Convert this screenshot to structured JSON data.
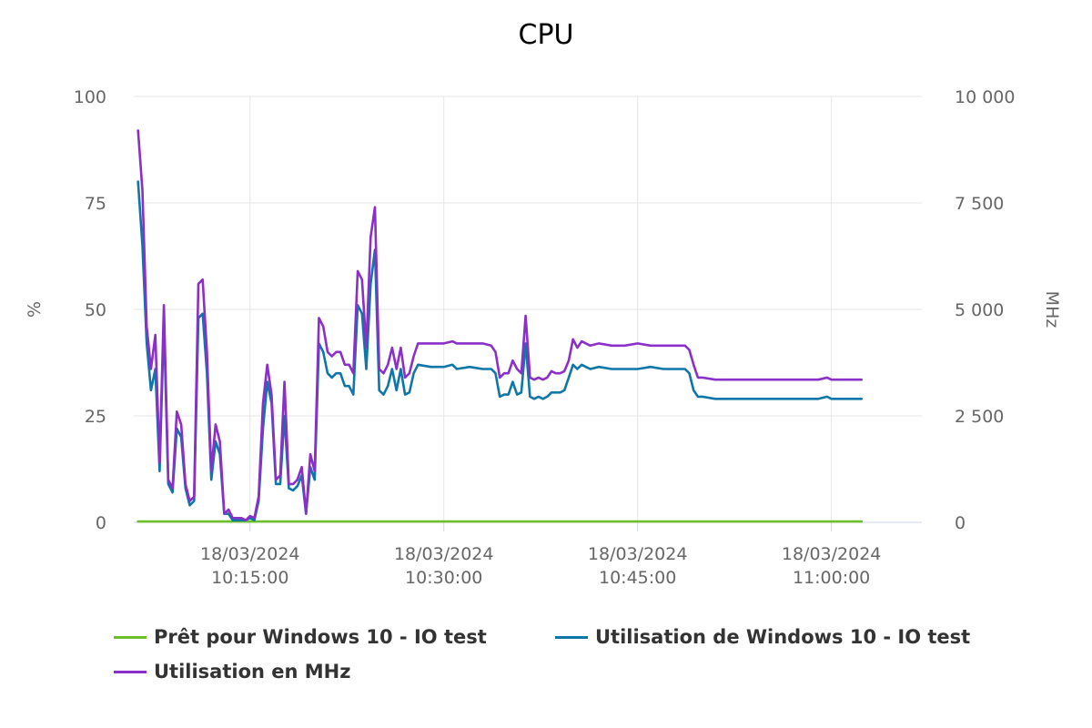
{
  "chart_data": {
    "type": "line",
    "title": "CPU",
    "y_left": {
      "label": "%",
      "range": [
        0,
        100
      ],
      "ticks": [
        "0",
        "25",
        "50",
        "75",
        "100"
      ]
    },
    "y_right": {
      "label": "MHz",
      "range": [
        0,
        10000
      ],
      "ticks": [
        "0",
        "2 500",
        "5 000",
        "7 500",
        "10 000"
      ]
    },
    "x_axis": {
      "range": [
        "18/03/2024 10:06",
        "18/03/2024 11:07"
      ],
      "ticks": [
        {
          "x": "18/03/2024 10:15:00",
          "date": "18/03/2024",
          "time": "10:15:00"
        },
        {
          "x": "18/03/2024 10:30:00",
          "date": "18/03/2024",
          "time": "10:30:00"
        },
        {
          "x": "18/03/2024 10:45:00",
          "date": "18/03/2024",
          "time": "10:45:00"
        },
        {
          "x": "18/03/2024 11:00:00",
          "date": "18/03/2024",
          "time": "11:00:00"
        }
      ]
    },
    "grid": true,
    "legend_position": "bottom-left",
    "series": [
      {
        "name": "Prêt pour Windows 10 - IO test",
        "color": "#6cbf2a",
        "axis": "left",
        "points": [
          [
            "10:06:20",
            0.2
          ],
          [
            "10:15:00",
            0.2
          ],
          [
            "10:30:00",
            0.2
          ],
          [
            "10:45:00",
            0.2
          ],
          [
            "11:00:00",
            0.2
          ],
          [
            "11:02:20",
            0.2
          ]
        ]
      },
      {
        "name": "Utilisation de Windows 10 - IO test",
        "color": "#0e76a8",
        "axis": "left",
        "points": [
          [
            "10:06:20",
            80
          ],
          [
            "10:06:40",
            65
          ],
          [
            "10:07:00",
            42
          ],
          [
            "10:07:20",
            31
          ],
          [
            "10:07:40",
            36
          ],
          [
            "10:08:00",
            12
          ],
          [
            "10:08:20",
            47
          ],
          [
            "10:08:40",
            9
          ],
          [
            "10:09:00",
            7
          ],
          [
            "10:09:20",
            22
          ],
          [
            "10:09:40",
            20
          ],
          [
            "10:10:00",
            8
          ],
          [
            "10:10:20",
            4
          ],
          [
            "10:10:40",
            5
          ],
          [
            "10:11:00",
            48
          ],
          [
            "10:11:20",
            49
          ],
          [
            "10:11:40",
            35
          ],
          [
            "10:12:00",
            10
          ],
          [
            "10:12:20",
            19
          ],
          [
            "10:12:40",
            16
          ],
          [
            "10:13:00",
            2
          ],
          [
            "10:13:20",
            2
          ],
          [
            "10:13:40",
            0.5
          ],
          [
            "10:14:00",
            0.5
          ],
          [
            "10:14:20",
            0.5
          ],
          [
            "10:14:40",
            0.5
          ],
          [
            "10:15:00",
            1
          ],
          [
            "10:15:20",
            0.5
          ],
          [
            "10:15:40",
            5
          ],
          [
            "10:16:00",
            22
          ],
          [
            "10:16:20",
            33
          ],
          [
            "10:16:40",
            28
          ],
          [
            "10:17:00",
            9
          ],
          [
            "10:17:20",
            9
          ],
          [
            "10:17:40",
            25
          ],
          [
            "10:18:00",
            8
          ],
          [
            "10:18:20",
            7.5
          ],
          [
            "10:18:40",
            8.5
          ],
          [
            "10:19:00",
            11
          ],
          [
            "10:19:20",
            2
          ],
          [
            "10:19:40",
            13
          ],
          [
            "10:20:00",
            10
          ],
          [
            "10:20:20",
            42
          ],
          [
            "10:20:40",
            40
          ],
          [
            "10:21:00",
            35
          ],
          [
            "10:21:20",
            34
          ],
          [
            "10:21:40",
            35
          ],
          [
            "10:22:00",
            35
          ],
          [
            "10:22:20",
            32
          ],
          [
            "10:22:40",
            32
          ],
          [
            "10:23:00",
            30
          ],
          [
            "10:23:20",
            51
          ],
          [
            "10:23:40",
            49
          ],
          [
            "10:24:00",
            36
          ],
          [
            "10:24:20",
            56
          ],
          [
            "10:24:40",
            64
          ],
          [
            "10:25:00",
            31
          ],
          [
            "10:25:20",
            30
          ],
          [
            "10:25:40",
            32
          ],
          [
            "10:26:00",
            36
          ],
          [
            "10:26:20",
            31
          ],
          [
            "10:26:40",
            36
          ],
          [
            "10:27:00",
            30
          ],
          [
            "10:27:20",
            30.5
          ],
          [
            "10:27:40",
            35
          ],
          [
            "10:28:00",
            37
          ],
          [
            "10:29:00",
            36.5
          ],
          [
            "10:30:00",
            36.5
          ],
          [
            "10:30:40",
            37
          ],
          [
            "10:31:00",
            36
          ],
          [
            "10:32:00",
            36.5
          ],
          [
            "10:33:00",
            36
          ],
          [
            "10:33:40",
            36
          ],
          [
            "10:34:00",
            35
          ],
          [
            "10:34:20",
            29.5
          ],
          [
            "10:34:40",
            30
          ],
          [
            "10:35:00",
            30
          ],
          [
            "10:35:20",
            33
          ],
          [
            "10:35:40",
            30
          ],
          [
            "10:36:00",
            30.5
          ],
          [
            "10:36:20",
            42
          ],
          [
            "10:36:40",
            29.5
          ],
          [
            "10:37:00",
            29
          ],
          [
            "10:37:20",
            29.5
          ],
          [
            "10:37:40",
            29
          ],
          [
            "10:38:00",
            29.5
          ],
          [
            "10:38:20",
            30.5
          ],
          [
            "10:38:40",
            30.5
          ],
          [
            "10:39:00",
            30.5
          ],
          [
            "10:39:20",
            31
          ],
          [
            "10:39:40",
            34
          ],
          [
            "10:40:00",
            37
          ],
          [
            "10:40:20",
            36
          ],
          [
            "10:40:40",
            37
          ],
          [
            "10:41:00",
            36.5
          ],
          [
            "10:41:20",
            36
          ],
          [
            "10:42:00",
            36.5
          ],
          [
            "10:43:00",
            36
          ],
          [
            "10:44:00",
            36
          ],
          [
            "10:45:00",
            36
          ],
          [
            "10:46:00",
            36.5
          ],
          [
            "10:47:00",
            36
          ],
          [
            "10:48:00",
            36
          ],
          [
            "10:48:40",
            36
          ],
          [
            "10:49:00",
            35
          ],
          [
            "10:49:20",
            31
          ],
          [
            "10:49:40",
            29.5
          ],
          [
            "10:50:00",
            29.5
          ],
          [
            "10:51:00",
            29
          ],
          [
            "10:52:00",
            29
          ],
          [
            "10:53:00",
            29
          ],
          [
            "10:54:00",
            29
          ],
          [
            "10:55:00",
            29
          ],
          [
            "10:56:00",
            29
          ],
          [
            "10:57:00",
            29
          ],
          [
            "10:58:00",
            29
          ],
          [
            "10:59:00",
            29
          ],
          [
            "10:59:40",
            29.5
          ],
          [
            "11:00:00",
            29
          ],
          [
            "11:01:00",
            29
          ],
          [
            "11:02:20",
            29
          ]
        ]
      },
      {
        "name": "Utilisation en MHz",
        "color": "#8b2fc9",
        "axis": "right",
        "points": [
          [
            "10:06:20",
            9200
          ],
          [
            "10:06:40",
            7800
          ],
          [
            "10:07:00",
            4600
          ],
          [
            "10:07:20",
            3600
          ],
          [
            "10:07:40",
            4400
          ],
          [
            "10:08:00",
            1400
          ],
          [
            "10:08:20",
            5100
          ],
          [
            "10:08:40",
            1000
          ],
          [
            "10:09:00",
            800
          ],
          [
            "10:09:20",
            2600
          ],
          [
            "10:09:40",
            2300
          ],
          [
            "10:10:00",
            900
          ],
          [
            "10:10:20",
            500
          ],
          [
            "10:10:40",
            600
          ],
          [
            "10:11:00",
            5600
          ],
          [
            "10:11:20",
            5700
          ],
          [
            "10:11:40",
            4000
          ],
          [
            "10:12:00",
            1200
          ],
          [
            "10:12:20",
            2300
          ],
          [
            "10:12:40",
            1900
          ],
          [
            "10:13:00",
            200
          ],
          [
            "10:13:20",
            300
          ],
          [
            "10:13:40",
            100
          ],
          [
            "10:14:00",
            100
          ],
          [
            "10:14:20",
            100
          ],
          [
            "10:14:40",
            50
          ],
          [
            "10:15:00",
            150
          ],
          [
            "10:15:20",
            100
          ],
          [
            "10:15:40",
            600
          ],
          [
            "10:16:00",
            2800
          ],
          [
            "10:16:20",
            3700
          ],
          [
            "10:16:40",
            3000
          ],
          [
            "10:17:00",
            1000
          ],
          [
            "10:17:20",
            1100
          ],
          [
            "10:17:40",
            3300
          ],
          [
            "10:18:00",
            900
          ],
          [
            "10:18:20",
            900
          ],
          [
            "10:18:40",
            1000
          ],
          [
            "10:19:00",
            1300
          ],
          [
            "10:19:20",
            200
          ],
          [
            "10:19:40",
            1600
          ],
          [
            "10:20:00",
            1200
          ],
          [
            "10:20:20",
            4800
          ],
          [
            "10:20:40",
            4600
          ],
          [
            "10:21:00",
            4000
          ],
          [
            "10:21:20",
            3900
          ],
          [
            "10:21:40",
            4000
          ],
          [
            "10:22:00",
            4000
          ],
          [
            "10:22:20",
            3700
          ],
          [
            "10:22:40",
            3700
          ],
          [
            "10:23:00",
            3500
          ],
          [
            "10:23:20",
            5900
          ],
          [
            "10:23:40",
            5700
          ],
          [
            "10:24:00",
            4100
          ],
          [
            "10:24:20",
            6700
          ],
          [
            "10:24:40",
            7400
          ],
          [
            "10:25:00",
            3600
          ],
          [
            "10:25:20",
            3500
          ],
          [
            "10:25:40",
            3700
          ],
          [
            "10:26:00",
            4100
          ],
          [
            "10:26:20",
            3600
          ],
          [
            "10:26:40",
            4100
          ],
          [
            "10:27:00",
            3400
          ],
          [
            "10:27:20",
            3500
          ],
          [
            "10:27:40",
            3900
          ],
          [
            "10:28:00",
            4200
          ],
          [
            "10:29:00",
            4200
          ],
          [
            "10:30:00",
            4200
          ],
          [
            "10:30:40",
            4250
          ],
          [
            "10:31:00",
            4200
          ],
          [
            "10:32:00",
            4200
          ],
          [
            "10:33:00",
            4200
          ],
          [
            "10:33:40",
            4150
          ],
          [
            "10:34:00",
            4000
          ],
          [
            "10:34:20",
            3400
          ],
          [
            "10:34:40",
            3500
          ],
          [
            "10:35:00",
            3500
          ],
          [
            "10:35:20",
            3800
          ],
          [
            "10:35:40",
            3600
          ],
          [
            "10:36:00",
            3500
          ],
          [
            "10:36:20",
            4850
          ],
          [
            "10:36:40",
            3400
          ],
          [
            "10:37:00",
            3350
          ],
          [
            "10:37:20",
            3400
          ],
          [
            "10:37:40",
            3350
          ],
          [
            "10:38:00",
            3400
          ],
          [
            "10:38:20",
            3550
          ],
          [
            "10:38:40",
            3500
          ],
          [
            "10:39:00",
            3500
          ],
          [
            "10:39:20",
            3550
          ],
          [
            "10:39:40",
            3800
          ],
          [
            "10:40:00",
            4300
          ],
          [
            "10:40:20",
            4100
          ],
          [
            "10:40:40",
            4250
          ],
          [
            "10:41:00",
            4200
          ],
          [
            "10:41:20",
            4150
          ],
          [
            "10:42:00",
            4200
          ],
          [
            "10:43:00",
            4150
          ],
          [
            "10:44:00",
            4150
          ],
          [
            "10:45:00",
            4200
          ],
          [
            "10:46:00",
            4150
          ],
          [
            "10:47:00",
            4150
          ],
          [
            "10:48:00",
            4150
          ],
          [
            "10:48:40",
            4150
          ],
          [
            "10:49:00",
            4050
          ],
          [
            "10:49:20",
            3700
          ],
          [
            "10:49:40",
            3400
          ],
          [
            "10:50:00",
            3400
          ],
          [
            "10:51:00",
            3350
          ],
          [
            "10:52:00",
            3350
          ],
          [
            "10:53:00",
            3350
          ],
          [
            "10:54:00",
            3350
          ],
          [
            "10:55:00",
            3350
          ],
          [
            "10:56:00",
            3350
          ],
          [
            "10:57:00",
            3350
          ],
          [
            "10:58:00",
            3350
          ],
          [
            "10:59:00",
            3350
          ],
          [
            "10:59:40",
            3400
          ],
          [
            "11:00:00",
            3350
          ],
          [
            "11:01:00",
            3350
          ],
          [
            "11:02:20",
            3350
          ]
        ]
      }
    ]
  }
}
